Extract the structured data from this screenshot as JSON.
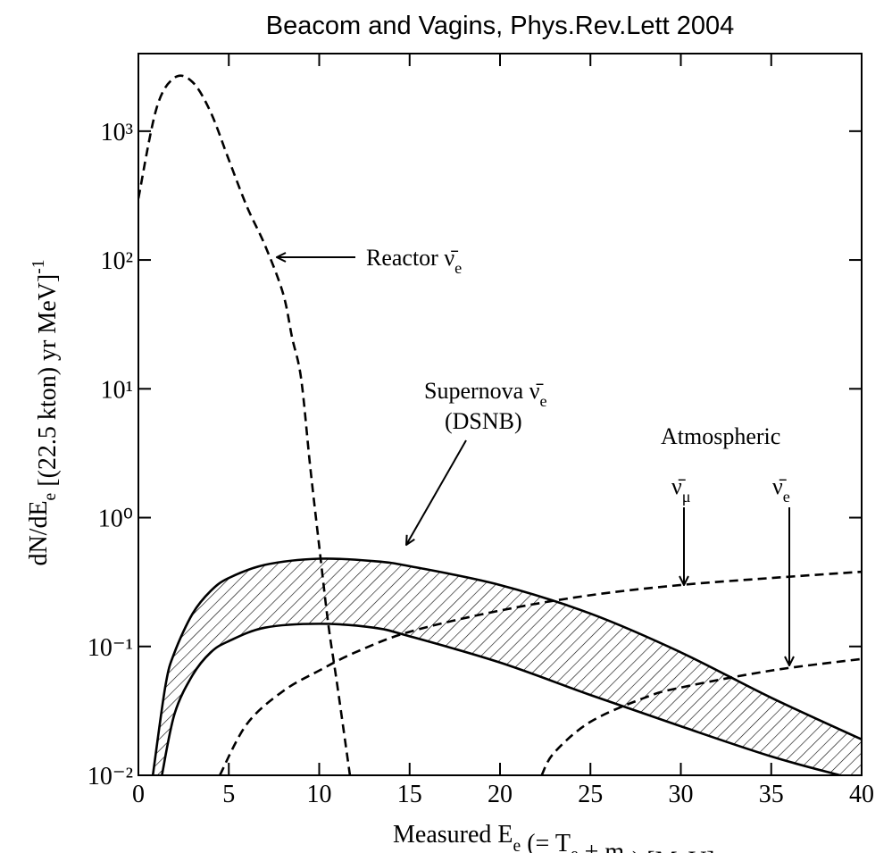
{
  "chart_data": {
    "type": "line",
    "title": "Beacom and Vagins, Phys.Rev.Lett 2004",
    "xlabel": [
      {
        "text": "Measured E",
        "sub": "e"
      },
      {
        "text": " (= T",
        "sub": "e"
      },
      {
        "text": " + m",
        "sub": "e"
      },
      {
        "text": ") [MeV]"
      }
    ],
    "ylabel": [
      {
        "text": "dN/dE",
        "sub": "e"
      },
      {
        "text": "  [(22.5 kton) yr MeV]",
        "sup": "-1"
      }
    ],
    "yscale": "log",
    "xlim": [
      0,
      40
    ],
    "ylim": [
      0.01,
      4000
    ],
    "xticks": [
      0,
      5,
      10,
      15,
      20,
      25,
      30,
      35,
      40
    ],
    "yticks": [
      {
        "value": 0.01,
        "label": "10⁻²"
      },
      {
        "value": 0.1,
        "label": "10⁻¹"
      },
      {
        "value": 1,
        "label": "10⁰"
      },
      {
        "value": 10,
        "label": "10¹"
      },
      {
        "value": 100,
        "label": "10²"
      },
      {
        "value": 1000,
        "label": "10³"
      }
    ],
    "series": [
      {
        "color": "#000000",
        "dashed": true,
        "x": [
          0,
          1,
          2,
          3,
          4,
          5,
          6,
          7,
          8,
          8.5,
          9,
          9.5,
          10,
          10.5,
          11,
          11.7
        ],
        "values": [
          300,
          1500,
          2600,
          2400,
          1400,
          600,
          260,
          130,
          55,
          25,
          12,
          2.5,
          0.6,
          0.15,
          0.05,
          0.01
        ]
      },
      {
        "color": "#000000",
        "dashed": false,
        "x": [
          0.8,
          1.5,
          2,
          3,
          4,
          5,
          7,
          10,
          13,
          15,
          20,
          25,
          30,
          35,
          40
        ],
        "values": [
          0.01,
          0.05,
          0.09,
          0.18,
          0.27,
          0.34,
          0.43,
          0.48,
          0.46,
          0.42,
          0.3,
          0.18,
          0.09,
          0.04,
          0.019
        ]
      },
      {
        "color": "#000000",
        "dashed": false,
        "x": [
          1.3,
          2,
          3,
          4,
          5,
          7,
          10,
          13,
          15,
          20,
          25,
          30,
          35,
          38.8
        ],
        "values": [
          0.01,
          0.03,
          0.06,
          0.09,
          0.11,
          0.14,
          0.15,
          0.14,
          0.12,
          0.075,
          0.042,
          0.024,
          0.014,
          0.01
        ]
      },
      {
        "color": "#000000",
        "dashed": true,
        "x": [
          4.5,
          6,
          8,
          10,
          12,
          15,
          20,
          25,
          30,
          35,
          40
        ],
        "values": [
          0.01,
          0.025,
          0.045,
          0.065,
          0.09,
          0.13,
          0.19,
          0.25,
          0.3,
          0.34,
          0.38
        ]
      },
      {
        "color": "#000000",
        "dashed": true,
        "x": [
          22.3,
          23,
          25,
          28,
          30,
          35,
          40
        ],
        "values": [
          0.01,
          0.015,
          0.026,
          0.04,
          0.048,
          0.065,
          0.08
        ]
      }
    ],
    "hatched_band": [
      1,
      2
    ],
    "annotations": [
      {
        "text": "Reactor ν̄",
        "sub": "e"
      },
      {
        "text": "Supernova ν̄",
        "sub": "e"
      },
      {
        "text": "(DSNB)"
      },
      {
        "text": "Atmospheric"
      },
      {
        "text": "ν̄",
        "sub": "μ"
      },
      {
        "text": "ν̄",
        "sub": "e"
      }
    ]
  }
}
